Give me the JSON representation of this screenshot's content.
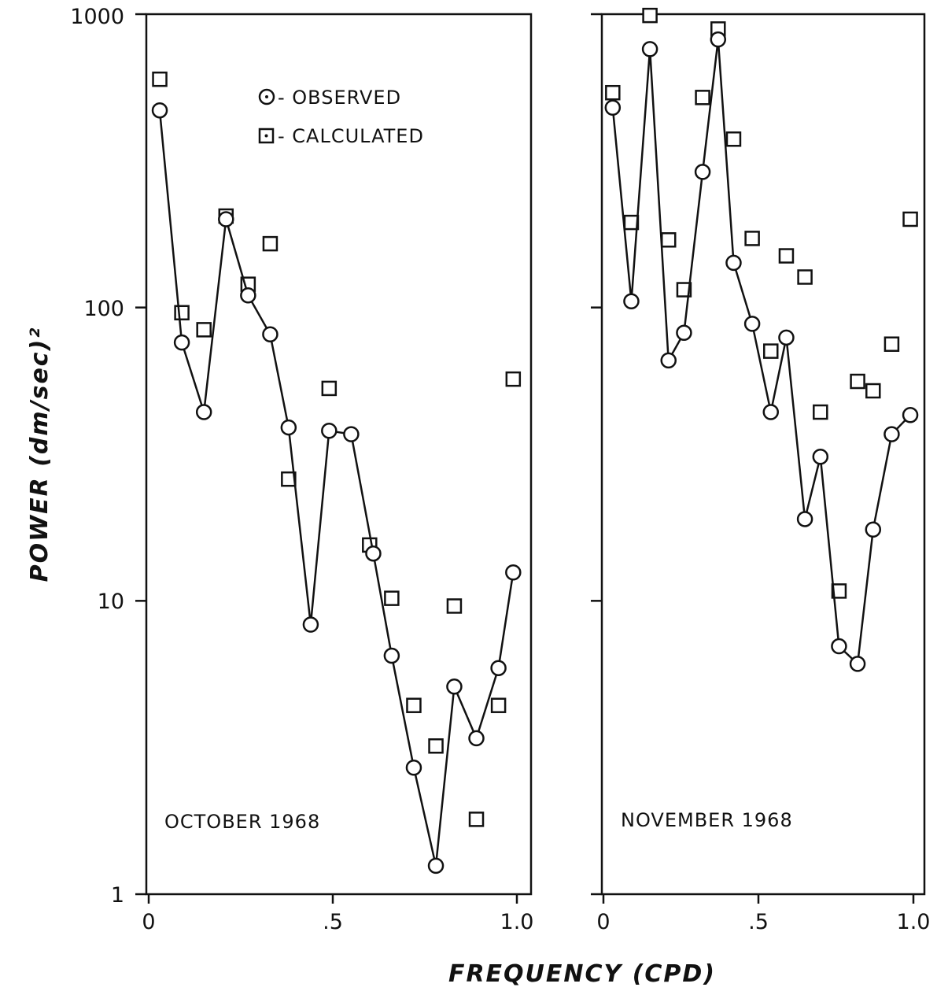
{
  "chart_data": {
    "type": "scatter",
    "yscale": "log",
    "ylim": [
      1,
      1000
    ],
    "xlim": [
      0,
      1.0
    ],
    "ylabel": "POWER (dm/sec)²",
    "xlabel": "FREQUENCY (CPD)",
    "yticks": [
      "1",
      "10",
      "100",
      "1000"
    ],
    "xticks": [
      "0",
      ".5",
      "1.0"
    ],
    "legend": {
      "placement": "top-left panel, upper-middle",
      "entries": [
        "- OBSERVED",
        "- CALCULATED"
      ]
    },
    "panels": [
      {
        "label": "OCTOBER 1968",
        "series": [
          {
            "name": "OBSERVED",
            "style": "circles-connected",
            "x": [
              0.03,
              0.09,
              0.15,
              0.21,
              0.27,
              0.33,
              0.38,
              0.44,
              0.49,
              0.55,
              0.61,
              0.66,
              0.72,
              0.78,
              0.83,
              0.89,
              0.95,
              0.99
            ],
            "y": [
              470,
              76,
              44,
              200,
              110,
              81,
              39,
              8.3,
              38,
              37,
              14.5,
              6.5,
              2.7,
              1.25,
              5.1,
              3.4,
              5.9,
              12.5
            ]
          },
          {
            "name": "CALCULATED",
            "style": "squares",
            "x": [
              0.03,
              0.09,
              0.15,
              0.21,
              0.27,
              0.33,
              0.38,
              0.49,
              0.6,
              0.66,
              0.72,
              0.78,
              0.83,
              0.89,
              0.95,
              0.99
            ],
            "y": [
              600,
              96,
              84,
              205,
              120,
              165,
              26,
              53,
              15.5,
              10.2,
              4.4,
              3.2,
              9.6,
              1.8,
              4.4,
              57
            ]
          }
        ]
      },
      {
        "label": "NOVEMBER 1968",
        "series": [
          {
            "name": "OBSERVED",
            "style": "circles-connected",
            "x": [
              0.03,
              0.09,
              0.15,
              0.21,
              0.26,
              0.32,
              0.37,
              0.42,
              0.48,
              0.54,
              0.59,
              0.65,
              0.7,
              0.76,
              0.82,
              0.87,
              0.93,
              0.99
            ],
            "y": [
              480,
              105,
              760,
              66,
              82,
              290,
              820,
              142,
              88,
              44,
              79,
              19,
              31,
              7.0,
              6.1,
              17.5,
              37,
              43
            ]
          },
          {
            "name": "CALCULATED",
            "style": "squares",
            "x": [
              0.03,
              0.09,
              0.15,
              0.21,
              0.26,
              0.32,
              0.37,
              0.42,
              0.48,
              0.54,
              0.59,
              0.65,
              0.7,
              0.76,
              0.82,
              0.87,
              0.93,
              0.99
            ],
            "y": [
              540,
              195,
              990,
              170,
              115,
              520,
              890,
              375,
              172,
              71,
              150,
              127,
              44,
              10.8,
              56,
              52,
              75,
              200
            ]
          }
        ]
      }
    ]
  }
}
